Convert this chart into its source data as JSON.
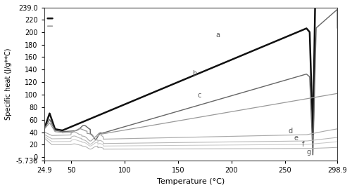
{
  "xlim": [
    24.9,
    298.9
  ],
  "ylim": [
    -5.736,
    239.0
  ],
  "xlabel": "Temperature (°C)",
  "ylabel": "Specific heat (J/g**C)",
  "xticks": [
    24.9,
    50,
    100,
    150,
    200,
    250,
    298.9
  ],
  "yticks": [
    -5.736,
    0,
    20,
    40,
    60,
    80,
    100,
    120,
    140,
    160,
    180,
    200,
    220,
    239.0
  ],
  "background_color": "#ffffff",
  "curve_colors": [
    "#111111",
    "#666666",
    "#999999",
    "#aaaaaa",
    "#b8b8b8",
    "#c8c8c8",
    "#b0b0b0"
  ],
  "curve_linewidths": [
    1.8,
    1.0,
    0.9,
    0.85,
    0.8,
    0.75,
    0.75
  ],
  "labels": [
    "a",
    "b",
    "c",
    "d",
    "e",
    "f",
    "g"
  ],
  "label_positions_x": [
    185,
    163,
    168,
    253,
    258,
    266,
    270
  ],
  "label_positions_y": [
    192,
    130,
    96,
    38,
    27,
    17,
    5
  ]
}
